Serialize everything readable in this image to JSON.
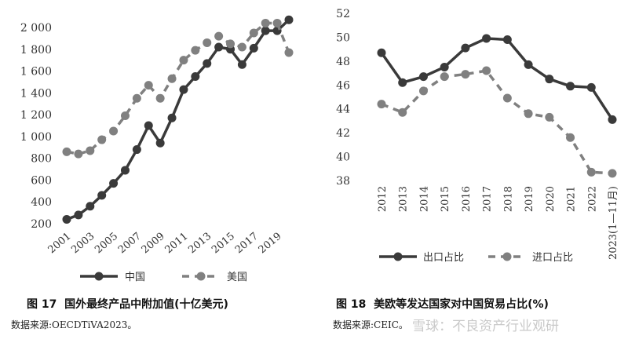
{
  "chart_data": [
    {
      "type": "line",
      "title": "国外最终产品中附加值(十亿美元)",
      "figure_label": "图 17",
      "source": "数据来源:OECDTiVA2023。",
      "x": [
        2001,
        2002,
        2003,
        2004,
        2005,
        2006,
        2007,
        2008,
        2009,
        2010,
        2011,
        2012,
        2013,
        2014,
        2015,
        2016,
        2017,
        2018,
        2019,
        2020
      ],
      "x_tick_labels": [
        "2001",
        "2003",
        "2005",
        "2007",
        "2009",
        "2011",
        "2013",
        "2015",
        "2017",
        "2019"
      ],
      "ylim": [
        200,
        2000
      ],
      "y_ticks": [
        "200",
        "400",
        "600",
        "800",
        "1 000",
        "1 200",
        "1 400",
        "1 600",
        "1 800",
        "2 000"
      ],
      "grid": false,
      "legend_position": "bottom",
      "series": [
        {
          "name": "中国",
          "style": "solid",
          "color": "#3a3a3a",
          "values": [
            240,
            280,
            360,
            460,
            570,
            690,
            880,
            1100,
            940,
            1170,
            1430,
            1550,
            1670,
            1820,
            1800,
            1660,
            1810,
            1970,
            1970,
            2070
          ]
        },
        {
          "name": "美国",
          "style": "dashed",
          "color": "#808080",
          "values": [
            860,
            840,
            870,
            970,
            1050,
            1190,
            1350,
            1470,
            1350,
            1530,
            1700,
            1790,
            1860,
            1920,
            1850,
            1820,
            1950,
            2040,
            2040,
            1770
          ]
        }
      ]
    },
    {
      "type": "line",
      "title": "美欧等发达国家对中国贸易占比(%)",
      "figure_label": "图 18",
      "source": "数据来源:CEIC。",
      "categories": [
        "2012",
        "2013",
        "2014",
        "2015",
        "2016",
        "2017",
        "2018",
        "2019",
        "2020",
        "2021",
        "2022",
        "2023(1—11月)"
      ],
      "ylim": [
        38,
        52
      ],
      "y_ticks": [
        "38",
        "40",
        "42",
        "44",
        "46",
        "48",
        "50",
        "52"
      ],
      "grid": false,
      "legend_position": "bottom",
      "series": [
        {
          "name": "出口占比",
          "style": "solid",
          "color": "#3a3a3a",
          "values": [
            48.7,
            46.2,
            46.7,
            47.5,
            49.1,
            49.9,
            49.8,
            47.7,
            46.5,
            45.9,
            45.8,
            43.1
          ]
        },
        {
          "name": "进口占比",
          "style": "dashed",
          "color": "#808080",
          "values": [
            44.4,
            43.7,
            45.5,
            46.7,
            46.9,
            47.2,
            44.9,
            43.6,
            43.3,
            41.6,
            38.7,
            38.6
          ]
        }
      ]
    }
  ],
  "watermark": "雪球：不良资产行业观研"
}
